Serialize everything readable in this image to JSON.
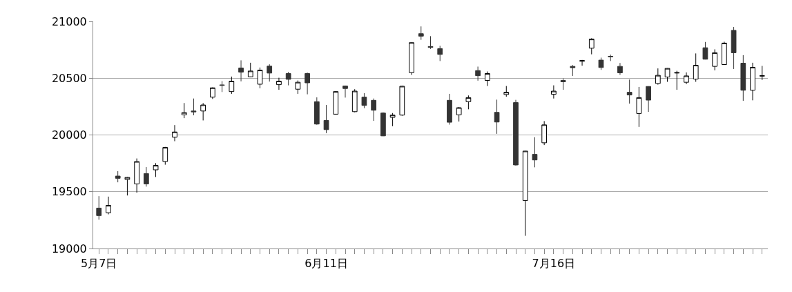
{
  "chart_data": {
    "type": "candlestick",
    "categories": [
      "5月7日",
      null,
      null,
      null,
      null,
      null,
      null,
      null,
      null,
      null,
      null,
      null,
      null,
      null,
      null,
      null,
      null,
      null,
      null,
      null,
      null,
      null,
      null,
      null,
      "6月11日",
      null,
      null,
      null,
      null,
      null,
      null,
      null,
      null,
      null,
      null,
      null,
      null,
      null,
      null,
      null,
      null,
      null,
      null,
      null,
      null,
      null,
      null,
      null,
      "7月16日",
      null,
      null,
      null,
      null,
      null,
      null,
      null,
      null,
      null,
      null,
      null,
      null,
      null,
      null,
      null,
      null,
      null,
      null,
      null,
      null,
      null,
      null
    ],
    "ohlc": [
      [
        19356,
        19461,
        19254,
        19290
      ],
      [
        19315,
        19457,
        19301,
        19380
      ],
      [
        19638,
        19681,
        19583,
        19618
      ],
      [
        19608,
        19630,
        19467,
        19626
      ],
      [
        19569,
        19793,
        19492,
        19766
      ],
      [
        19660,
        19717,
        19545,
        19569
      ],
      [
        19693,
        19752,
        19630,
        19732
      ],
      [
        19766,
        19895,
        19738,
        19890
      ],
      [
        19980,
        20087,
        19945,
        20026
      ],
      [
        20177,
        20281,
        20148,
        20197
      ],
      [
        20211,
        20321,
        20173,
        20203
      ],
      [
        20211,
        20281,
        20128,
        20264
      ],
      [
        20333,
        20419,
        20317,
        20415
      ],
      [
        20441,
        20474,
        20378,
        20437
      ],
      [
        20382,
        20514,
        20362,
        20474
      ],
      [
        20590,
        20657,
        20472,
        20553
      ],
      [
        20512,
        20636,
        20508,
        20563
      ],
      [
        20447,
        20594,
        20411,
        20571
      ],
      [
        20606,
        20622,
        20470,
        20545
      ],
      [
        20443,
        20504,
        20398,
        20474
      ],
      [
        20541,
        20555,
        20437,
        20490
      ],
      [
        20403,
        20480,
        20362,
        20464
      ],
      [
        20541,
        20549,
        20358,
        20459
      ],
      [
        20293,
        20331,
        20090,
        20096
      ],
      [
        20128,
        20264,
        20016,
        20047
      ],
      [
        20183,
        20386,
        20179,
        20382
      ],
      [
        20431,
        20435,
        20329,
        20409
      ],
      [
        20205,
        20403,
        20200,
        20386
      ],
      [
        20333,
        20368,
        20236,
        20260
      ],
      [
        20305,
        20321,
        20124,
        20218
      ],
      [
        20193,
        20199,
        19990,
        19992
      ],
      [
        20155,
        20193,
        20077,
        20175
      ],
      [
        20175,
        20433,
        20169,
        20429
      ],
      [
        20549,
        20815,
        20529,
        20813
      ],
      [
        20892,
        20956,
        20838,
        20870
      ],
      [
        20779,
        20870,
        20758,
        20771
      ],
      [
        20760,
        20785,
        20651,
        20709
      ],
      [
        20305,
        20362,
        20091,
        20112
      ],
      [
        20177,
        20246,
        20118,
        20240
      ],
      [
        20293,
        20348,
        20226,
        20329
      ],
      [
        20567,
        20602,
        20478,
        20522
      ],
      [
        20480,
        20559,
        20431,
        20541
      ],
      [
        20199,
        20311,
        20010,
        20114
      ],
      [
        20356,
        20431,
        20337,
        20376
      ],
      [
        20285,
        20309,
        19730,
        19736
      ],
      [
        19423,
        19860,
        19112,
        19858
      ],
      [
        19829,
        19980,
        19715,
        19780
      ],
      [
        19931,
        20122,
        19911,
        20089
      ],
      [
        20358,
        20437,
        20321,
        20386
      ],
      [
        20480,
        20498,
        20398,
        20468
      ],
      [
        20604,
        20616,
        20520,
        20592
      ],
      [
        20649,
        20661,
        20610,
        20655
      ],
      [
        20764,
        20852,
        20710,
        20844
      ],
      [
        20659,
        20681,
        20573,
        20594
      ],
      [
        20693,
        20707,
        20651,
        20689
      ],
      [
        20604,
        20634,
        20529,
        20547
      ],
      [
        20376,
        20488,
        20276,
        20352
      ],
      [
        20189,
        20423,
        20071,
        20329
      ],
      [
        20427,
        20429,
        20203,
        20307
      ],
      [
        20453,
        20586,
        20443,
        20525
      ],
      [
        20510,
        20588,
        20468,
        20586
      ],
      [
        20545,
        20565,
        20398,
        20549
      ],
      [
        20464,
        20551,
        20447,
        20520
      ],
      [
        20492,
        20718,
        20468,
        20614
      ],
      [
        20768,
        20819,
        20665,
        20667
      ],
      [
        20604,
        20754,
        20569,
        20724
      ],
      [
        20620,
        20821,
        20618,
        20809
      ],
      [
        20921,
        20951,
        20581,
        20724
      ],
      [
        20632,
        20703,
        20301,
        20394
      ],
      [
        20394,
        20636,
        20305,
        20596
      ],
      [
        20518,
        20608,
        20484,
        20522
      ]
    ],
    "colors": [
      "#333333",
      "#ffffff",
      "#333333",
      "#ffffff",
      "#ffffff",
      "#333333",
      "#ffffff",
      "#ffffff",
      "#ffffff",
      "#ffffff",
      "#333333",
      "#ffffff",
      "#ffffff",
      "#333333",
      "#ffffff",
      "#333333",
      "#ffffff",
      "#ffffff",
      "#333333",
      "#ffffff",
      "#333333",
      "#ffffff",
      "#333333",
      "#333333",
      "#333333",
      "#ffffff",
      "#333333",
      "#ffffff",
      "#333333",
      "#333333",
      "#333333",
      "#ffffff",
      "#ffffff",
      "#ffffff",
      "#333333",
      "#333333",
      "#333333",
      "#333333",
      "#ffffff",
      "#ffffff",
      "#333333",
      "#ffffff",
      "#333333",
      "#ffffff",
      "#333333",
      "#ffffff",
      "#333333",
      "#ffffff",
      "#ffffff",
      "#333333",
      "#333333",
      "#ffffff",
      "#ffffff",
      "#333333",
      "#333333",
      "#333333",
      "#333333",
      "#ffffff",
      "#333333",
      "#ffffff",
      "#ffffff",
      "#000000",
      "#ffffff",
      "#ffffff",
      "#333333",
      "#ffffff",
      "#ffffff",
      "#333333",
      "#333333",
      "#ffffff",
      "#000000"
    ],
    "ylim": [
      19000,
      21000
    ],
    "yticks": [
      19000,
      19500,
      20000,
      20500,
      21000
    ],
    "grid": "y"
  }
}
